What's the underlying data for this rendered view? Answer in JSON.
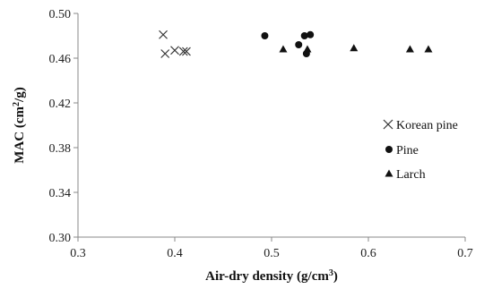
{
  "chart_data": {
    "type": "scatter",
    "xlabel": "Air-dry density (g/cm",
    "xlabel_sup": "3",
    "xlabel_end": ")",
    "ylabel": "MAC (cm",
    "ylabel_sup": "2",
    "ylabel_end": "/g)",
    "xlim": [
      0.3,
      0.7
    ],
    "ylim": [
      0.3,
      0.5
    ],
    "x_ticks": [
      "0.3",
      "0.4",
      "0.5",
      "0.6",
      "0.7"
    ],
    "y_ticks": [
      "0.30",
      "0.34",
      "0.38",
      "0.42",
      "0.46",
      "0.50"
    ],
    "grid": false,
    "legend_position": "right",
    "series": [
      {
        "name": "Korean pine",
        "marker": "x",
        "points": [
          {
            "x": 0.388,
            "y": 0.481
          },
          {
            "x": 0.39,
            "y": 0.464
          },
          {
            "x": 0.4,
            "y": 0.467
          },
          {
            "x": 0.409,
            "y": 0.466
          },
          {
            "x": 0.412,
            "y": 0.466
          }
        ]
      },
      {
        "name": "Pine",
        "marker": "circle",
        "points": [
          {
            "x": 0.493,
            "y": 0.48
          },
          {
            "x": 0.528,
            "y": 0.472
          },
          {
            "x": 0.534,
            "y": 0.48
          },
          {
            "x": 0.536,
            "y": 0.464
          },
          {
            "x": 0.54,
            "y": 0.481
          }
        ]
      },
      {
        "name": "Larch",
        "marker": "triangle",
        "points": [
          {
            "x": 0.512,
            "y": 0.468
          },
          {
            "x": 0.537,
            "y": 0.468
          },
          {
            "x": 0.585,
            "y": 0.469
          },
          {
            "x": 0.643,
            "y": 0.468
          },
          {
            "x": 0.662,
            "y": 0.468
          }
        ]
      }
    ]
  }
}
